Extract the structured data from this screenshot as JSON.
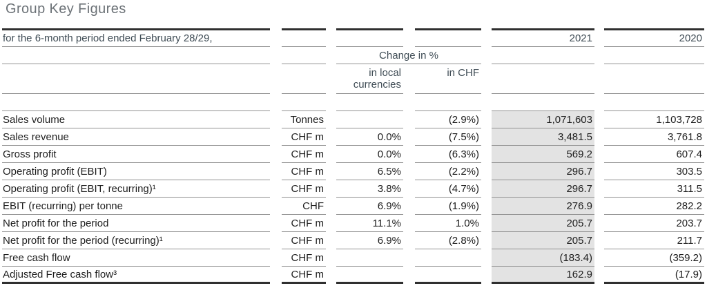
{
  "title": "Group Key Figures",
  "table": {
    "period_header": "for the 6-month period ended February 28/29,",
    "year_columns": [
      "2021",
      "2020"
    ],
    "change_header": "Change in %",
    "change_subheaders": {
      "local": "in local currencies",
      "chf": "in CHF"
    },
    "rows": [
      {
        "label": "Sales volume",
        "unit": "Tonnes",
        "change_local": "",
        "change_chf": "(2.9%)",
        "y2021": "1,071,603",
        "y2020": "1,103,728"
      },
      {
        "label": "Sales revenue",
        "unit": "CHF m",
        "change_local": "0.0%",
        "change_chf": "(7.5%)",
        "y2021": "3,481.5",
        "y2020": "3,761.8"
      },
      {
        "label": "Gross profit",
        "unit": "CHF m",
        "change_local": "0.0%",
        "change_chf": "(6.3%)",
        "y2021": "569.2",
        "y2020": "607.4"
      },
      {
        "label": "Operating profit (EBIT)",
        "unit": "CHF m",
        "change_local": "6.5%",
        "change_chf": "(2.2%)",
        "y2021": "296.7",
        "y2020": "303.5"
      },
      {
        "label": "Operating profit (EBIT, recurring)¹",
        "unit": "CHF m",
        "change_local": "3.8%",
        "change_chf": "(4.7%)",
        "y2021": "296.7",
        "y2020": "311.5"
      },
      {
        "label": "EBIT (recurring) per tonne",
        "unit": "CHF",
        "change_local": "6.9%",
        "change_chf": "(1.9%)",
        "y2021": "276.9",
        "y2020": "282.2"
      },
      {
        "label": "Net profit for the period",
        "unit": "CHF m",
        "change_local": "11.1%",
        "change_chf": "1.0%",
        "y2021": "205.7",
        "y2020": "203.7"
      },
      {
        "label": "Net profit for the period (recurring)¹",
        "unit": "CHF m",
        "change_local": "6.9%",
        "change_chf": "(2.8%)",
        "y2021": "205.7",
        "y2020": "211.7"
      },
      {
        "label": "Free cash flow",
        "unit": "CHF m",
        "change_local": "",
        "change_chf": "",
        "y2021": "(183.4)",
        "y2020": "(359.2)"
      },
      {
        "label": "Adjusted Free cash flow³",
        "unit": "CHF m",
        "change_local": "",
        "change_chf": "",
        "y2021": "162.9",
        "y2020": "(17.9)"
      }
    ]
  },
  "colors": {
    "highlight_column_bg": "#e3e3e3",
    "thick_rule": "#2f2f2f",
    "thin_rule": "#909090",
    "header_text": "#3f4c55",
    "data_text": "#1d1d1d",
    "title_text": "#6c7277"
  }
}
